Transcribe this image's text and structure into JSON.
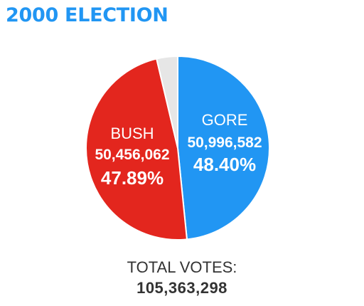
{
  "colors": {
    "title": "#2196f3",
    "gore": "#2196f3",
    "bush": "#e3261e",
    "other": "#e6e6e6",
    "text": "#333333",
    "label": "#ffffff"
  },
  "chart_data": {
    "type": "pie",
    "title": "2000 ELECTION",
    "start_angle_deg": 0,
    "direction": "clockwise",
    "slices": [
      {
        "key": "gore",
        "name": "GORE",
        "votes_label": "50,996,582",
        "pct_label": "48.40%",
        "value": 48.4,
        "color": "#2196f3"
      },
      {
        "key": "bush",
        "name": "BUSH",
        "votes_label": "50,456,062",
        "pct_label": "47.89%",
        "value": 47.89,
        "color": "#e3261e"
      },
      {
        "key": "other",
        "name": "",
        "votes_label": "",
        "pct_label": "",
        "value": 3.71,
        "color": "#e6e6e6"
      }
    ],
    "total_caption": "TOTAL VOTES:",
    "total_value": "105,363,298"
  }
}
